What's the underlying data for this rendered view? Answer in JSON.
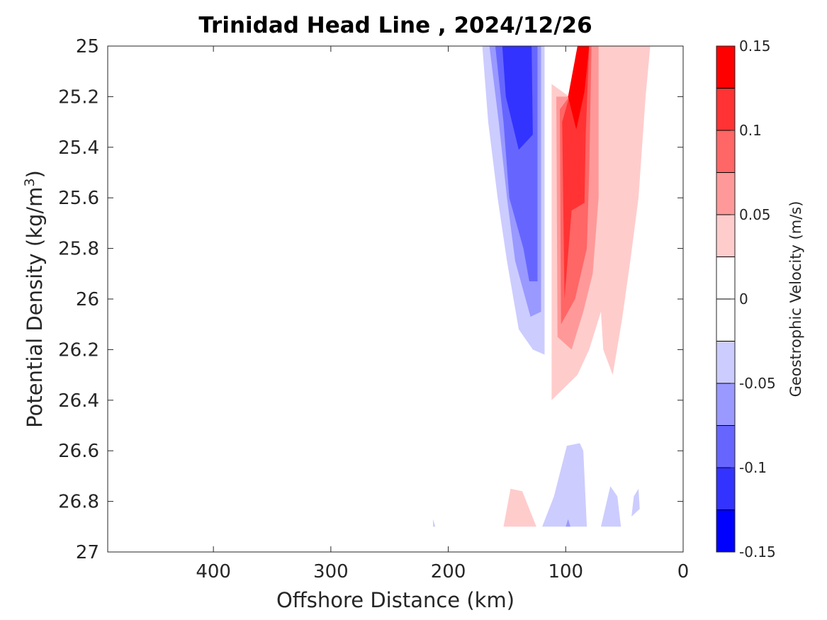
{
  "chart_data": {
    "type": "contour",
    "title": "Trinidad Head Line , 2024/12/26",
    "xlabel": "Offshore Distance (km)",
    "ylabel_prefix": "Potential Density (kg/m",
    "ylabel_sup": "3",
    "ylabel_suffix": ")",
    "x_range": [
      490,
      0
    ],
    "x_reversed": true,
    "x_ticks": [
      400,
      300,
      200,
      100,
      0
    ],
    "y_range": [
      25,
      27
    ],
    "y_reversed": true,
    "y_ticks": [
      25,
      25.2,
      25.4,
      25.6,
      25.8,
      26,
      26.2,
      26.4,
      26.6,
      26.8,
      27
    ],
    "colorbar": {
      "label": "Geostrophic Velocity (m/s)",
      "range": [
        -0.15,
        0.15
      ],
      "tick_values": [
        0.15,
        0.1,
        0.05,
        0,
        -0.05,
        -0.1,
        -0.15
      ],
      "tick_labels": [
        "0.15",
        "0.1",
        "0.05",
        "0",
        "-0.05",
        "-0.1",
        "-0.15"
      ],
      "levels": [
        -0.15,
        -0.125,
        -0.1,
        -0.075,
        -0.05,
        -0.025,
        0.025,
        0.05,
        0.075,
        0.1,
        0.125,
        0.15
      ],
      "colors_top_to_bottom": [
        "#ff0000",
        "#ff3333",
        "#ff6666",
        "#ff9999",
        "#ffcccc",
        "#ffffff",
        "#ffffff",
        "#ccccff",
        "#9999ff",
        "#6666ff",
        "#3333ff",
        "#0000ff"
      ]
    },
    "regions": [
      {
        "value": -0.025,
        "color": "#ccccff",
        "points": [
          [
            171,
            25
          ],
          [
            118,
            25
          ],
          [
            118,
            26.22
          ],
          [
            128,
            26.2
          ],
          [
            140,
            26.12
          ],
          [
            150,
            25.85
          ],
          [
            158,
            25.6
          ],
          [
            166,
            25.3
          ]
        ]
      },
      {
        "value": -0.05,
        "color": "#9999ff",
        "points": [
          [
            165,
            25
          ],
          [
            121,
            25
          ],
          [
            121,
            26.05
          ],
          [
            130,
            26.07
          ],
          [
            143,
            25.85
          ],
          [
            150,
            25.6
          ],
          [
            157,
            25.3
          ]
        ]
      },
      {
        "value": -0.075,
        "color": "#6666ff",
        "points": [
          [
            160,
            25
          ],
          [
            124,
            25
          ],
          [
            124,
            25.93
          ],
          [
            131,
            25.93
          ],
          [
            136,
            25.8
          ],
          [
            148,
            25.6
          ],
          [
            153,
            25.3
          ]
        ]
      },
      {
        "value": -0.1,
        "color": "#3333ff",
        "points": [
          [
            154,
            25
          ],
          [
            129,
            25
          ],
          [
            128,
            25.35
          ],
          [
            140,
            25.41
          ],
          [
            151,
            25.2
          ]
        ]
      },
      {
        "value": 0.025,
        "color": "#ffcccc",
        "points": [
          [
            112,
            26.4
          ],
          [
            112,
            25.15
          ],
          [
            97,
            25.2
          ],
          [
            80,
            25
          ],
          [
            28,
            25
          ],
          [
            32,
            25.2
          ],
          [
            38,
            25.6
          ],
          [
            45,
            25.85
          ],
          [
            52,
            26.08
          ],
          [
            60,
            26.3
          ],
          [
            68,
            26.2
          ],
          [
            70,
            26.05
          ],
          [
            80,
            26.2
          ],
          [
            90,
            26.3
          ],
          [
            112,
            26.4
          ]
        ]
      },
      {
        "value": 0.05,
        "color": "#ff9999",
        "points": [
          [
            107,
            26.15
          ],
          [
            108,
            25.2
          ],
          [
            97,
            25.2
          ],
          [
            82,
            25
          ],
          [
            72,
            25
          ],
          [
            72,
            25.6
          ],
          [
            77,
            25.9
          ],
          [
            85,
            26.05
          ],
          [
            95,
            26.2
          ]
        ]
      },
      {
        "value": 0.075,
        "color": "#ff6666",
        "points": [
          [
            104,
            26.1
          ],
          [
            105,
            25.25
          ],
          [
            97,
            25.2
          ],
          [
            85,
            25
          ],
          [
            78,
            25
          ],
          [
            80,
            25.5
          ],
          [
            82,
            25.8
          ],
          [
            92,
            26.0
          ]
        ]
      },
      {
        "value": 0.1,
        "color": "#ff3333",
        "points": [
          [
            101,
            26.0
          ],
          [
            103,
            25.3
          ],
          [
            97,
            25.2
          ],
          [
            86,
            25
          ],
          [
            80,
            25
          ],
          [
            83,
            25.35
          ],
          [
            84,
            25.62
          ],
          [
            95,
            25.65
          ]
        ]
      },
      {
        "value": 0.125,
        "color": "#ff0000",
        "points": [
          [
            98,
            25.2
          ],
          [
            91,
            25.33
          ],
          [
            84,
            25.18
          ],
          [
            80,
            25
          ],
          [
            90,
            25.0
          ]
        ]
      },
      {
        "value": 0.025,
        "color": "#ffcccc",
        "points": [
          [
            153,
            26.9
          ],
          [
            147,
            26.75
          ],
          [
            137,
            26.76
          ],
          [
            125,
            26.9
          ]
        ]
      },
      {
        "value": -0.025,
        "color": "#ccccff",
        "points": [
          [
            120,
            26.9
          ],
          [
            110,
            26.78
          ],
          [
            99,
            26.58
          ],
          [
            88,
            26.57
          ],
          [
            85,
            26.6
          ],
          [
            82,
            26.9
          ]
        ]
      },
      {
        "value": -0.025,
        "color": "#ccccff",
        "points": [
          [
            70,
            26.9
          ],
          [
            64,
            26.78
          ],
          [
            62,
            26.74
          ],
          [
            56,
            26.78
          ],
          [
            53,
            26.9
          ]
        ]
      },
      {
        "value": -0.025,
        "color": "#ccccff",
        "points": [
          [
            44,
            26.86
          ],
          [
            42,
            26.78
          ],
          [
            38,
            26.75
          ],
          [
            37,
            26.83
          ]
        ]
      },
      {
        "value": -0.025,
        "color": "#ccccff",
        "points": [
          [
            213,
            26.9
          ],
          [
            211,
            26.9
          ],
          [
            213,
            26.87
          ]
        ]
      },
      {
        "value": -0.05,
        "color": "#9999ff",
        "points": [
          [
            100,
            26.9
          ],
          [
            98,
            26.87
          ],
          [
            96,
            26.9
          ]
        ]
      }
    ]
  }
}
